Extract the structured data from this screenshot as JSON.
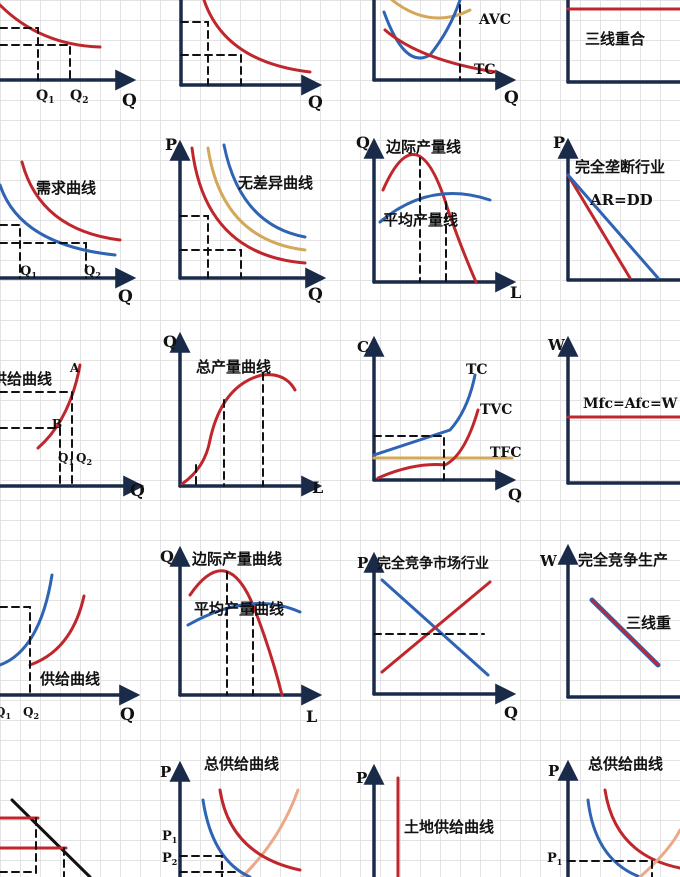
{
  "axis_color": "#1a2b4a",
  "colors": {
    "red": "#c0272d",
    "blue": "#2f63b3",
    "gold": "#d4a85a",
    "salmon": "#eba98a",
    "dash": "#111111"
  },
  "labels": {
    "q": "Q",
    "l": "L",
    "p": "P",
    "c": "C",
    "w": "W",
    "q1": "Q",
    "q2": "Q",
    "sub1": "1",
    "sub2": "2",
    "p1": "P",
    "p2": "P"
  },
  "panels": {
    "r0c2": {
      "avc": "AVC",
      "tc": "TC"
    },
    "r0c3": {
      "title": "三线重合"
    },
    "r1c0": {
      "title": "需求曲线"
    },
    "r1c1": {
      "title": "无差异曲线"
    },
    "r1c2": {
      "title1": "边际产量线",
      "title2": "平均产量线"
    },
    "r1c3": {
      "title": "完全垄断行业",
      "curve": "AR=DD"
    },
    "r2c0": {
      "title": "供给曲线",
      "a": "A",
      "b": "B"
    },
    "r2c1": {
      "title": "总产量曲线"
    },
    "r2c2": {
      "tc": "TC",
      "tvc": "TVC",
      "tfc": "TFC"
    },
    "r2c3": {
      "curve": "Mfc=Afc=W"
    },
    "r3c0": {
      "title": "供给曲线"
    },
    "r3c1": {
      "title1": "边际产量曲线",
      "title2": "平均产量曲线"
    },
    "r3c2": {
      "title": "完全竞争市场行业"
    },
    "r3c3": {
      "title": "完全竞争生产",
      "curve": "三线重"
    },
    "r4c1": {
      "title": "总供给曲线"
    },
    "r4c2": {
      "title": "土地供给曲线"
    },
    "r4c3": {
      "title": "总供给曲线"
    }
  }
}
